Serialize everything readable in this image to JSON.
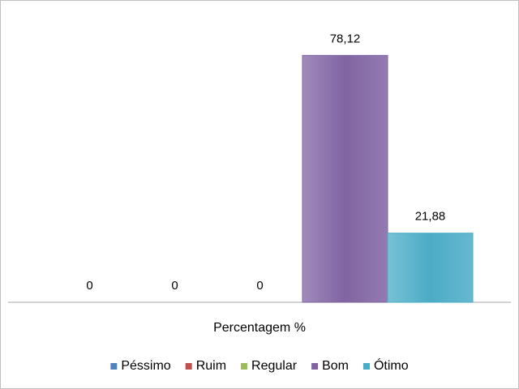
{
  "chart_data": {
    "type": "bar",
    "categories": [
      "Percentagem %"
    ],
    "series": [
      {
        "name": "Péssimo",
        "color": "#4f81bd",
        "values": [
          0
        ]
      },
      {
        "name": "Ruim",
        "color": "#c0504d",
        "values": [
          0
        ]
      },
      {
        "name": "Regular",
        "color": "#9bbb59",
        "values": [
          0
        ]
      },
      {
        "name": "Bom",
        "color": "#8064a2",
        "values": [
          78.12
        ],
        "value_labels": [
          "78,12"
        ]
      },
      {
        "name": "Ótimo",
        "color": "#4bacc6",
        "values": [
          21.88
        ],
        "value_labels": [
          "21,88"
        ]
      }
    ],
    "ylim": [
      0,
      90
    ],
    "legend": "bottom"
  }
}
